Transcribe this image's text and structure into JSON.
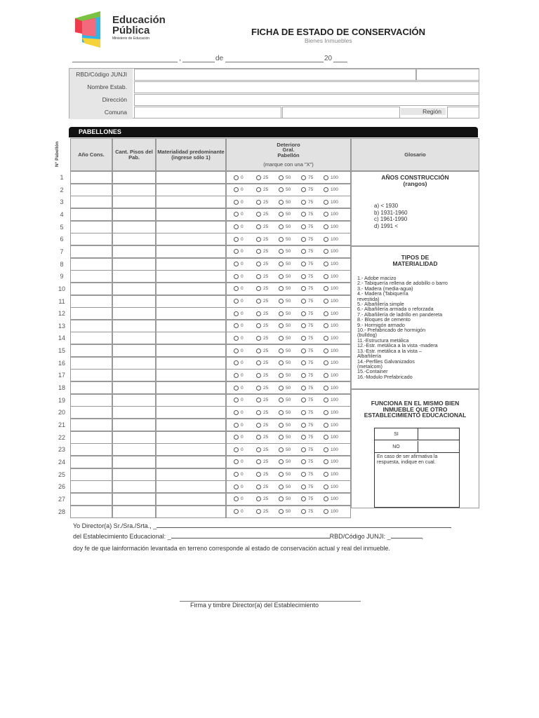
{
  "header": {
    "brand_line1": "Educación",
    "brand_line2": "Pública",
    "brand_line3": "Ministerio de Educación",
    "title": "FICHA DE ESTADO DE CONSERVACIÓN",
    "subtitle": "Bienes Inmuebles"
  },
  "dateline": {
    "comma": ",",
    "de": "de",
    "year": "20"
  },
  "info": {
    "rbd": "RBD/Código JUNJI",
    "nombre": "Nombre Estab.",
    "direccion": "Dirección",
    "comuna": "Comuna",
    "region": "Región"
  },
  "pabellones": {
    "title": "PABELLONES",
    "col_num": "N° Pabellón",
    "col_ano": "Año Cons.",
    "col_pisos": "Cant. Pisos del Pab.",
    "col_mat": "Materialidad predominante (ingrese sólo 1)",
    "col_det": "Deterioro Gral. Pabellón",
    "col_det_note": "(marque con una \"X\")",
    "col_glos": "Glosario",
    "options": [
      "0",
      "25",
      "50",
      "75",
      "100"
    ],
    "rows": [
      "1",
      "2",
      "3",
      "4",
      "5",
      "6",
      "7",
      "8",
      "9",
      "10",
      "11",
      "12",
      "13",
      "14",
      "15",
      "16",
      "17",
      "18",
      "19",
      "20",
      "21",
      "22",
      "23",
      "24",
      "25",
      "26",
      "27",
      "28"
    ]
  },
  "glosario": {
    "anos_title": "AÑOS CONSTRUCCIÓN",
    "anos_sub": "(rangos)",
    "anos": [
      "a)  < 1930",
      "b)  1931-1960",
      "c)  1961-1990",
      "d)  1991 <"
    ],
    "mat_title": "TIPOS DE MATERIALIDAD",
    "mat": [
      "1.- Adobe macizo",
      "2.- Tabiquería rellena de adobillo o barro",
      "3.- Madera (media-agua)",
      "4.- Madera (Tabiquería",
      "revestida)",
      "5.- Albañilería simple",
      "6.- Albañilería armada o reforzada",
      "7.- Albañilería de ladrillo en pandereta",
      "8.- Bloques de cemento",
      "9.- Hormigón armado",
      "10.- Prefabricado de hormigón",
      "(bulldog)",
      "11.-Estructura metálica",
      "12.-Estr. metálica a la vista -madera",
      "13.-Estr. metálica a la vista –",
      "Albañilería",
      "14.-Perfiles Galvanizados",
      "(metalcom)",
      "15.-Container",
      "16.-Modulo Prefabricado"
    ],
    "func_title": "FUNCIONA EN EL MISMO BIEN INMUEBLE QUE OTRO ESTABLECIMIENTO EDUCACIONAL",
    "si": "SI",
    "no": "NO",
    "note": "En caso de ser afirmativa la respuesta, indique en cual."
  },
  "declaration": {
    "line1": "Yo Director(a) Sr./Sra./Srta., _",
    "line2a": "del Establecimiento Educacional: _",
    "line2b": "RBD/Código JUNJI: _",
    "line2c": ",",
    "line3": "doy fe de que lainformación levantada en terreno corresponde al estado de conservación actual y real del inmueble.",
    "signature": "Firma y timbre Director(a) del Establecimiento"
  }
}
